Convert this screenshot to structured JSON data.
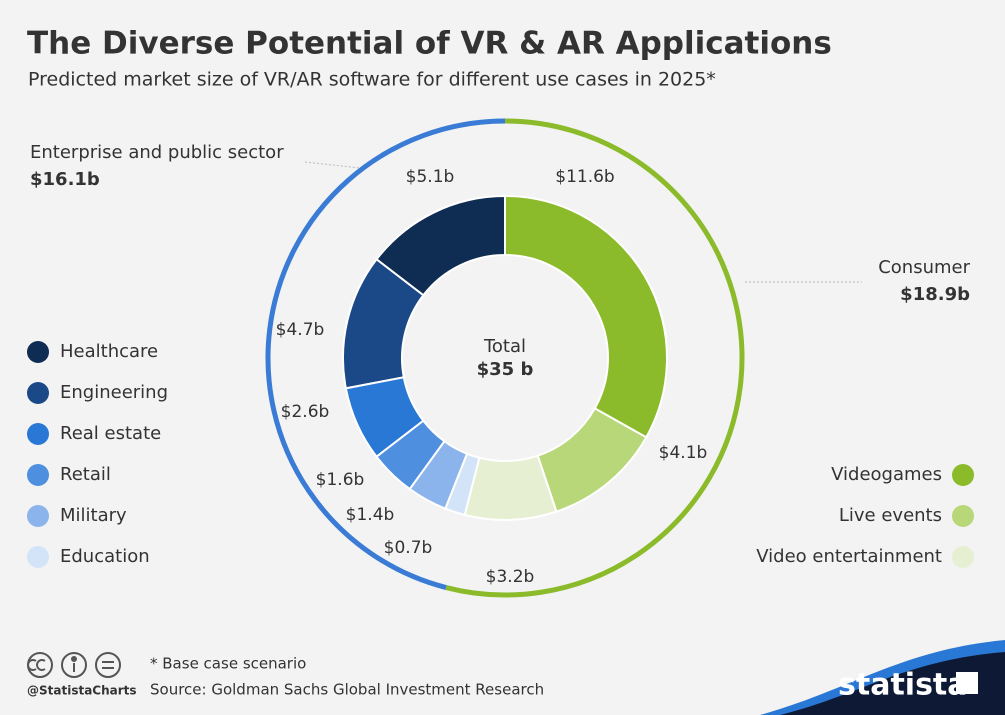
{
  "chart_data": {
    "type": "donut",
    "title": "The Diverse Potential of VR & AR Applications",
    "subtitle": "Predicted market size of VR/AR software for different use cases in 2025*",
    "total": {
      "label": "Total",
      "value": 35,
      "value_label": "$35 b"
    },
    "groups": [
      {
        "name": "Consumer",
        "value": 18.9,
        "value_label": "$18.9b",
        "color": "#8bbb2a",
        "categories": [
          "Videogames",
          "Live events",
          "Video entertainment"
        ],
        "values": [
          11.6,
          4.1,
          3.2
        ],
        "value_labels": [
          "$11.6b",
          "$4.1b",
          "$3.2b"
        ],
        "colors": [
          "#8bbb2a",
          "#b8d778",
          "#e7efd3"
        ]
      },
      {
        "name": "Enterprise and public sector",
        "value": 16.1,
        "value_label": "$16.1b",
        "color": "#3a7bd5",
        "categories": [
          "Healthcare",
          "Engineering",
          "Real estate",
          "Retail",
          "Military",
          "Education"
        ],
        "values": [
          5.1,
          4.7,
          2.6,
          1.6,
          1.4,
          0.7
        ],
        "value_labels": [
          "$5.1b",
          "$4.7b",
          "$2.6b",
          "$1.6b",
          "$1.4b",
          "$0.7b"
        ],
        "colors": [
          "#0f2c52",
          "#1b4886",
          "#2a78d6",
          "#4f8fe0",
          "#8bb3ec",
          "#d3e4f8"
        ]
      }
    ],
    "note": "* Base case scenario",
    "source": "Source: Goldman Sachs Global Investment Research",
    "credit": "@StatistaCharts",
    "brand": "statista"
  }
}
